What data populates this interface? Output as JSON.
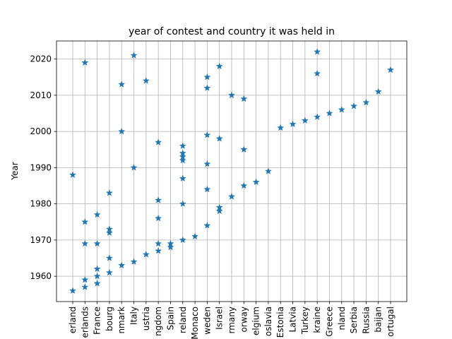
{
  "chart_data": {
    "type": "scatter",
    "title": "year of contest and country it was held in",
    "xlabel": "",
    "ylabel": "Year",
    "ylim": [
      1953,
      2025
    ],
    "yticks": [
      1960,
      1970,
      1980,
      1990,
      2000,
      2010,
      2020
    ],
    "grid": true,
    "marker": "star",
    "color": "#1f77b4",
    "categories": [
      "Switzerland",
      "Netherlands",
      "France",
      "Luxembourg",
      "Denmark",
      "Italy",
      "Austria",
      "United Kingdom",
      "Spain",
      "Ireland",
      "Monaco",
      "Sweden",
      "Israel",
      "Germany",
      "Norway",
      "Belgium",
      "Yugoslavia",
      "Estonia",
      "Latvia",
      "Turkey",
      "Ukraine",
      "Greece",
      "Finland",
      "Serbia",
      "Russia",
      "Azerbaijan",
      "Portugal"
    ],
    "tick_labels": [
      "erland",
      "erlands",
      "France",
      "bourg",
      "nmark",
      "Italy",
      "ustria",
      "ngdom",
      "Spain",
      "reland",
      "Monaco",
      "weden",
      "Israel",
      "rmany",
      "orway",
      "elgium",
      "oslavia",
      "Estonia",
      "Latvia",
      "Turkey",
      "kraine",
      "Greece",
      "nland",
      "Serbia",
      "Russia",
      "baijan",
      "ortugal"
    ],
    "points": [
      [
        "Switzerland",
        1956
      ],
      [
        "Switzerland",
        1988
      ],
      [
        "Netherlands",
        1957
      ],
      [
        "Netherlands",
        1959
      ],
      [
        "Netherlands",
        1969
      ],
      [
        "Netherlands",
        1975
      ],
      [
        "Netherlands",
        2019
      ],
      [
        "France",
        1958
      ],
      [
        "France",
        1960
      ],
      [
        "France",
        1962
      ],
      [
        "France",
        1969
      ],
      [
        "France",
        1977
      ],
      [
        "Luxembourg",
        1961
      ],
      [
        "Luxembourg",
        1965
      ],
      [
        "Luxembourg",
        1972
      ],
      [
        "Luxembourg",
        1973
      ],
      [
        "Luxembourg",
        1983
      ],
      [
        "Denmark",
        1963
      ],
      [
        "Denmark",
        2000
      ],
      [
        "Denmark",
        2013
      ],
      [
        "Italy",
        1964
      ],
      [
        "Italy",
        1990
      ],
      [
        "Italy",
        2021
      ],
      [
        "Austria",
        1966
      ],
      [
        "Austria",
        2014
      ],
      [
        "United Kingdom",
        1967
      ],
      [
        "United Kingdom",
        1969
      ],
      [
        "United Kingdom",
        1976
      ],
      [
        "United Kingdom",
        1981
      ],
      [
        "United Kingdom",
        1997
      ],
      [
        "Spain",
        1968
      ],
      [
        "Spain",
        1969
      ],
      [
        "Ireland",
        1970
      ],
      [
        "Ireland",
        1980
      ],
      [
        "Ireland",
        1987
      ],
      [
        "Ireland",
        1992
      ],
      [
        "Ireland",
        1993
      ],
      [
        "Ireland",
        1994
      ],
      [
        "Ireland",
        1996
      ],
      [
        "Monaco",
        1971
      ],
      [
        "Sweden",
        1974
      ],
      [
        "Sweden",
        1984
      ],
      [
        "Sweden",
        1991
      ],
      [
        "Sweden",
        1999
      ],
      [
        "Sweden",
        2012
      ],
      [
        "Sweden",
        2015
      ],
      [
        "Israel",
        1978
      ],
      [
        "Israel",
        1979
      ],
      [
        "Israel",
        1998
      ],
      [
        "Israel",
        2018
      ],
      [
        "Germany",
        1982
      ],
      [
        "Germany",
        2010
      ],
      [
        "Norway",
        1985
      ],
      [
        "Norway",
        1995
      ],
      [
        "Norway",
        2009
      ],
      [
        "Belgium",
        1986
      ],
      [
        "Yugoslavia",
        1989
      ],
      [
        "Estonia",
        2001
      ],
      [
        "Latvia",
        2002
      ],
      [
        "Turkey",
        2003
      ],
      [
        "Ukraine",
        2004
      ],
      [
        "Ukraine",
        2016
      ],
      [
        "Ukraine",
        2022
      ],
      [
        "Greece",
        2005
      ],
      [
        "Finland",
        2006
      ],
      [
        "Serbia",
        2007
      ],
      [
        "Russia",
        2008
      ],
      [
        "Azerbaijan",
        2011
      ],
      [
        "Portugal",
        2017
      ]
    ]
  }
}
